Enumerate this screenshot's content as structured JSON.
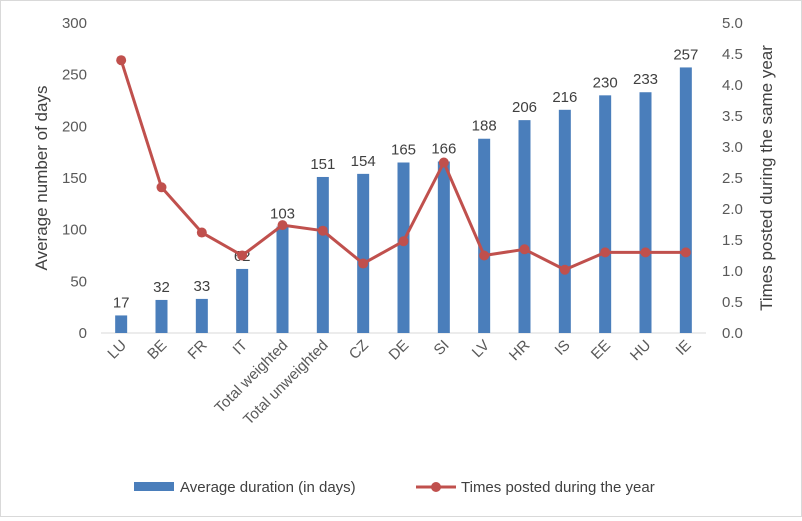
{
  "chart_data": {
    "type": "bar",
    "categories": [
      "LU",
      "BE",
      "FR",
      "IT",
      "Total weighted",
      "Total unweighted",
      "CZ",
      "DE",
      "SI",
      "LV",
      "HR",
      "IS",
      "EE",
      "HU",
      "IE"
    ],
    "series": [
      {
        "name": "Average duration (in days)",
        "type": "bar",
        "axis": "left",
        "color": "#4a7ebb",
        "values": [
          17,
          32,
          33,
          62,
          103,
          151,
          154,
          165,
          166,
          188,
          206,
          216,
          230,
          233,
          257
        ],
        "labels": [
          "17",
          "32",
          "33",
          "62",
          "103",
          "151",
          "154",
          "165",
          "166",
          "188",
          "206",
          "216",
          "230",
          "233",
          "257"
        ]
      },
      {
        "name": "Times posted during the year",
        "type": "line",
        "axis": "right",
        "color": "#c0504d",
        "values": [
          4.4,
          2.35,
          1.62,
          1.25,
          1.74,
          1.65,
          1.12,
          1.48,
          2.75,
          1.25,
          1.35,
          1.02,
          1.3,
          1.3,
          1.3
        ]
      }
    ],
    "y_left": {
      "label": "Average number of days",
      "ylim": [
        0,
        300
      ],
      "ticks": [
        "0",
        "50",
        "100",
        "150",
        "200",
        "250",
        "300"
      ]
    },
    "y_right": {
      "label": "Times posted during the same year",
      "ylim": [
        0,
        5
      ],
      "ticks": [
        "0.0",
        "0.5",
        "1.0",
        "1.5",
        "2.0",
        "2.5",
        "3.0",
        "3.5",
        "4.0",
        "4.5",
        "5.0"
      ]
    },
    "grid": false,
    "legend": "bottom"
  }
}
